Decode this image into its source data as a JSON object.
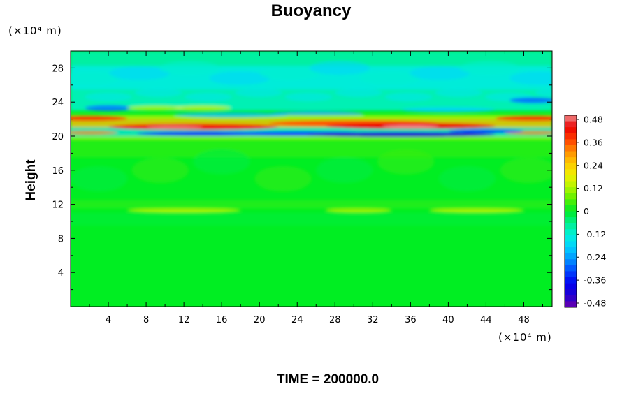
{
  "chart_data": {
    "type": "heatmap",
    "title": "Buoyancy",
    "ylabel": "Height",
    "xlabel": "",
    "x_unit": "(×10⁴ m)",
    "y_unit": "(×10⁴ m)",
    "xlim": [
      0,
      51
    ],
    "ylim": [
      0,
      30
    ],
    "x_ticks": [
      4,
      8,
      12,
      16,
      20,
      24,
      28,
      32,
      36,
      40,
      44,
      48
    ],
    "y_ticks": [
      4,
      8,
      12,
      16,
      20,
      24,
      28
    ],
    "time_label": "TIME = 200000.0",
    "colorbar": {
      "range": [
        -0.48,
        0.48
      ],
      "ticks": [
        "0.48",
        "0.36",
        "0.24",
        "0.12",
        "0",
        "-0.12",
        "-0.24",
        "-0.36",
        "-0.48"
      ]
    },
    "field_features": [
      {
        "feature": "background",
        "height_range": [
          0,
          19.5
        ],
        "value": 0.0
      },
      {
        "feature": "weak positive band",
        "height": 11.3,
        "x_ranges": [
          [
            6,
            19
          ],
          [
            28,
            33
          ],
          [
            38,
            48
          ]
        ],
        "value": 0.1
      },
      {
        "feature": "strong positive layer",
        "height": 21.3,
        "x_range": [
          9,
          44
        ],
        "value": 0.4
      },
      {
        "feature": "strong negative layer",
        "height": 20.3,
        "x_range": [
          10,
          47
        ],
        "value": -0.4
      },
      {
        "feature": "weak negative upper layer",
        "height_range": [
          22,
          30
        ],
        "value": -0.15
      }
    ]
  }
}
